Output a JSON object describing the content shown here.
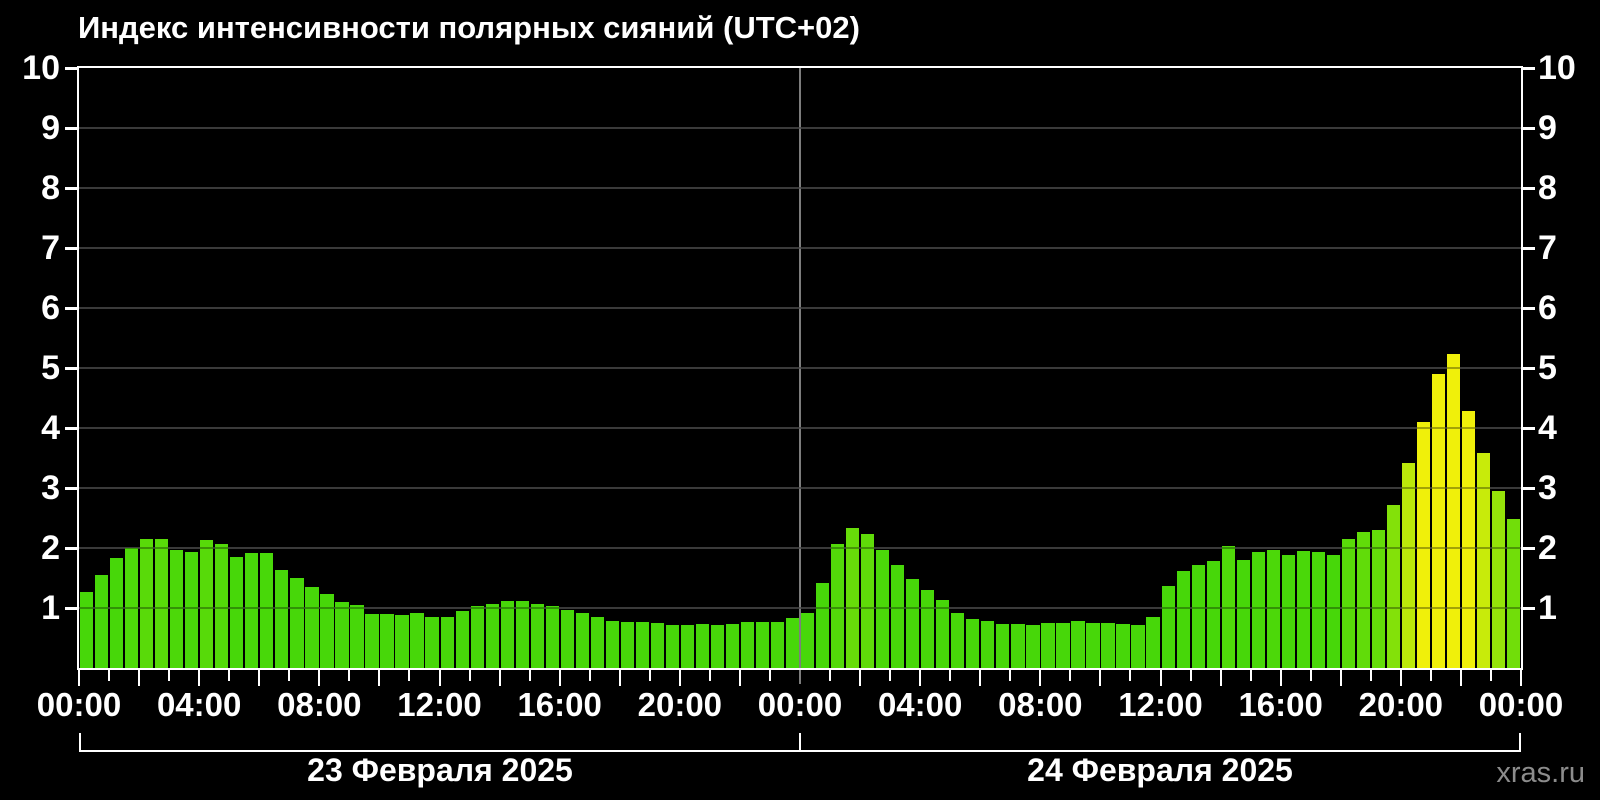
{
  "title": "Индекс интенсивности полярных сияний (UTC+02)",
  "watermark": "xras.ru",
  "y_axis": {
    "ticks": [
      "1",
      "2",
      "3",
      "4",
      "5",
      "6",
      "7",
      "8",
      "9",
      "10"
    ]
  },
  "x_axis": {
    "labels": [
      {
        "hour": 0,
        "text": "00:00"
      },
      {
        "hour": 4,
        "text": "04:00"
      },
      {
        "hour": 8,
        "text": "08:00"
      },
      {
        "hour": 12,
        "text": "12:00"
      },
      {
        "hour": 16,
        "text": "16:00"
      },
      {
        "hour": 20,
        "text": "20:00"
      },
      {
        "hour": 24,
        "text": "00:00"
      },
      {
        "hour": 28,
        "text": "04:00"
      },
      {
        "hour": 32,
        "text": "08:00"
      },
      {
        "hour": 36,
        "text": "12:00"
      },
      {
        "hour": 40,
        "text": "16:00"
      },
      {
        "hour": 44,
        "text": "20:00"
      },
      {
        "hour": 48,
        "text": "00:00"
      }
    ]
  },
  "days": [
    {
      "label": "23 Февраля 2025"
    },
    {
      "label": "24 Февраля 2025"
    }
  ],
  "colors": {
    "background": "#000000",
    "bar_green": "#3ccc0a",
    "bar_yellow": "#ffff00",
    "gridline": "#565656",
    "axis": "#ffffff",
    "day_divider": "#7d7d7d",
    "watermark": "#8c8c8c",
    "text": "#ffffff"
  },
  "chart_data": {
    "type": "bar",
    "title": "Индекс интенсивности полярных сияний (UTC+02)",
    "timezone": "UTC+02",
    "ylabel": "",
    "xlabel": "",
    "ylim": [
      0,
      10
    ],
    "y_ticks": [
      1,
      2,
      3,
      4,
      5,
      6,
      7,
      8,
      9,
      10
    ],
    "grid": true,
    "interval_hours": 0.5,
    "hours_total": 48,
    "day_labels": [
      "23 Февраля 2025",
      "24 Февраля 2025"
    ],
    "x_tick_labels_every_4h": [
      "00:00",
      "04:00",
      "08:00",
      "12:00",
      "16:00",
      "20:00",
      "00:00",
      "04:00",
      "08:00",
      "12:00",
      "16:00",
      "20:00",
      "00:00"
    ],
    "values": [
      1.27,
      1.55,
      1.83,
      2.0,
      2.15,
      2.15,
      1.97,
      1.93,
      2.13,
      2.07,
      1.85,
      1.92,
      1.92,
      1.63,
      1.5,
      1.35,
      1.23,
      1.1,
      1.05,
      0.9,
      0.9,
      0.88,
      0.92,
      0.85,
      0.85,
      0.95,
      1.04,
      1.07,
      1.12,
      1.11,
      1.06,
      1.03,
      0.96,
      0.91,
      0.85,
      0.79,
      0.77,
      0.76,
      0.75,
      0.72,
      0.72,
      0.74,
      0.72,
      0.74,
      0.77,
      0.76,
      0.77,
      0.84,
      0.92,
      1.42,
      2.07,
      2.34,
      2.24,
      1.96,
      1.72,
      1.48,
      1.3,
      1.13,
      0.91,
      0.81,
      0.78,
      0.74,
      0.73,
      0.71,
      0.75,
      0.75,
      0.78,
      0.75,
      0.75,
      0.74,
      0.72,
      0.85,
      1.37,
      1.62,
      1.72,
      1.79,
      2.03,
      1.8,
      1.93,
      1.97,
      1.88,
      1.95,
      1.93,
      1.88,
      2.15,
      2.26,
      2.3,
      2.72,
      3.42,
      4.1,
      4.9,
      5.24,
      4.29,
      3.58,
      2.95,
      2.48
    ]
  }
}
